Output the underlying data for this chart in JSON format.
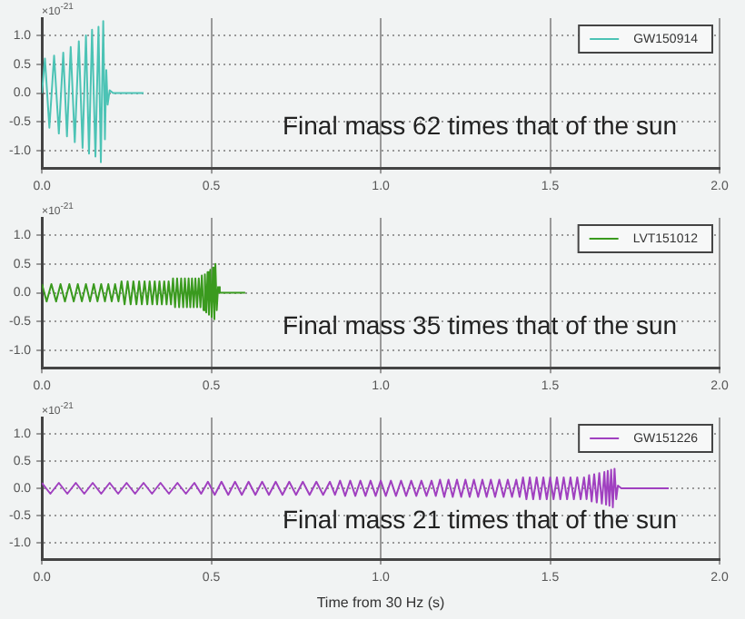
{
  "chart_data": [
    {
      "type": "line",
      "ylabel": "×10$^{-21}$",
      "annotations": [
        "Final mass 62 times that of the sun"
      ],
      "legend": "top right",
      "grid": true,
      "marker": "none",
      "line_style": "solid",
      "xlim": [
        0,
        2
      ],
      "xticks": [
        {
          "value": 0,
          "label": "0.0"
        },
        {
          "value": 0.5,
          "label": "0.5"
        },
        {
          "value": 1,
          "label": "1.0"
        },
        {
          "value": 1.5,
          "label": "1.5"
        },
        {
          "value": 2,
          "label": "2.0"
        }
      ],
      "ylim": [
        -1.3,
        1.3
      ],
      "yticks": [
        {
          "value": -1,
          "label": "-1.0"
        },
        {
          "value": -0.5,
          "label": "-0.5"
        },
        {
          "value": 0,
          "label": "0.0"
        },
        {
          "value": 0.5,
          "label": "0.5"
        },
        {
          "value": 1,
          "label": "1.0"
        }
      ],
      "series": [
        {
          "name": "GW150914",
          "color": "#4cc3b5",
          "x": [
            0,
            0.009,
            0.022,
            0.036,
            0.05,
            0.063,
            0.074,
            0.085,
            0.097,
            0.109,
            0.12,
            0.13,
            0.139,
            0.148,
            0.158,
            0.167,
            0.174,
            0.181,
            0.186,
            0.19,
            0.194,
            0.2,
            0.21,
            0.3
          ],
          "values": [
            0,
            0.6,
            -0.6,
            0.65,
            -0.7,
            0.7,
            -0.75,
            0.8,
            -0.85,
            0.9,
            -0.95,
            1.0,
            -1.05,
            1.1,
            -1.1,
            1.15,
            -1.2,
            1.25,
            -0.8,
            0.4,
            -0.2,
            0.05,
            0,
            0
          ]
        }
      ]
    },
    {
      "type": "line",
      "ylabel": "×10$^{-21}$",
      "annotations": [
        "Final mass 35 times that of the sun"
      ],
      "legend": "top right",
      "grid": true,
      "marker": "none",
      "line_style": "solid",
      "xlim": [
        0,
        2
      ],
      "xticks": [
        {
          "value": 0,
          "label": "0.0"
        },
        {
          "value": 0.5,
          "label": "0.5"
        },
        {
          "value": 1,
          "label": "1.0"
        },
        {
          "value": 1.5,
          "label": "1.5"
        },
        {
          "value": 2,
          "label": "2.0"
        }
      ],
      "ylim": [
        -1.3,
        1.3
      ],
      "yticks": [
        {
          "value": -1,
          "label": "-1.0"
        },
        {
          "value": -0.5,
          "label": "-0.5"
        },
        {
          "value": 0,
          "label": "0.0"
        },
        {
          "value": 0.5,
          "label": "0.5"
        },
        {
          "value": 1,
          "label": "1.0"
        }
      ],
      "series": [
        {
          "name": "LVT151012",
          "color": "#3a9a1e",
          "x": [
            0,
            0.014,
            0.028,
            0.042,
            0.055,
            0.068,
            0.081,
            0.094,
            0.106,
            0.118,
            0.13,
            0.142,
            0.153,
            0.164,
            0.175,
            0.186,
            0.196,
            0.206,
            0.216,
            0.226,
            0.235,
            0.244,
            0.253,
            0.262,
            0.27,
            0.279,
            0.287,
            0.295,
            0.303,
            0.311,
            0.318,
            0.326,
            0.333,
            0.34,
            0.347,
            0.354,
            0.361,
            0.368,
            0.374,
            0.381,
            0.387,
            0.393,
            0.399,
            0.405,
            0.411,
            0.417,
            0.422,
            0.428,
            0.433,
            0.438,
            0.443,
            0.448,
            0.453,
            0.458,
            0.463,
            0.468,
            0.472,
            0.477,
            0.481,
            0.485,
            0.489,
            0.493,
            0.497,
            0.501,
            0.505,
            0.509,
            0.512,
            0.516,
            0.52,
            0.525,
            0.6
          ],
          "values": [
            0.15,
            -0.15,
            0.15,
            -0.15,
            0.15,
            -0.15,
            0.15,
            -0.15,
            0.15,
            -0.15,
            0.15,
            -0.15,
            0.15,
            -0.15,
            0.15,
            -0.15,
            0.15,
            -0.15,
            0.15,
            -0.15,
            0.2,
            -0.2,
            0.2,
            -0.2,
            0.2,
            -0.2,
            0.2,
            -0.2,
            0.2,
            -0.2,
            0.2,
            -0.2,
            0.2,
            -0.2,
            0.2,
            -0.2,
            0.2,
            -0.2,
            0.2,
            -0.2,
            0.25,
            -0.25,
            0.25,
            -0.25,
            0.25,
            -0.25,
            0.25,
            -0.25,
            0.25,
            -0.25,
            0.25,
            -0.25,
            0.25,
            -0.25,
            0.25,
            -0.25,
            0.3,
            -0.3,
            0.32,
            -0.34,
            0.36,
            -0.38,
            0.4,
            -0.42,
            0.44,
            -0.46,
            0.5,
            -0.3,
            0.1,
            0,
            0
          ]
        }
      ]
    },
    {
      "type": "line",
      "ylabel": "×10$^{-21}$",
      "xlabel": "Time from 30 Hz (s)",
      "annotations": [
        "Final mass 21 times that of the sun"
      ],
      "legend": "top right",
      "grid": true,
      "marker": "none",
      "line_style": "solid",
      "xlim": [
        0,
        2
      ],
      "xticks": [
        {
          "value": 0,
          "label": "0.0"
        },
        {
          "value": 0.5,
          "label": "0.5"
        },
        {
          "value": 1,
          "label": "1.0"
        },
        {
          "value": 1.5,
          "label": "1.5"
        },
        {
          "value": 2,
          "label": "2.0"
        }
      ],
      "ylim": [
        -1.3,
        1.3
      ],
      "yticks": [
        {
          "value": -1,
          "label": "-1.0"
        },
        {
          "value": -0.5,
          "label": "-0.5"
        },
        {
          "value": 0,
          "label": "0.0"
        },
        {
          "value": 0.5,
          "label": "0.5"
        },
        {
          "value": 1,
          "label": "1.0"
        }
      ],
      "series": [
        {
          "name": "GW151226",
          "color": "#a040c0",
          "x": [
            0,
            0.025,
            0.05,
            0.075,
            0.1,
            0.125,
            0.15,
            0.175,
            0.2,
            0.225,
            0.25,
            0.275,
            0.3,
            0.325,
            0.35,
            0.375,
            0.4,
            0.425,
            0.45,
            0.47,
            0.49,
            0.51,
            0.53,
            0.55,
            0.57,
            0.59,
            0.61,
            0.63,
            0.65,
            0.67,
            0.69,
            0.71,
            0.73,
            0.75,
            0.77,
            0.79,
            0.81,
            0.83,
            0.85,
            0.865,
            0.88,
            0.895,
            0.91,
            0.925,
            0.94,
            0.955,
            0.97,
            0.985,
            1.0,
            1.015,
            1.03,
            1.045,
            1.06,
            1.075,
            1.09,
            1.105,
            1.12,
            1.135,
            1.15,
            1.1625,
            1.175,
            1.1875,
            1.2,
            1.2125,
            1.225,
            1.2375,
            1.25,
            1.2625,
            1.275,
            1.2875,
            1.3,
            1.3125,
            1.325,
            1.3375,
            1.35,
            1.3625,
            1.375,
            1.3875,
            1.4,
            1.41,
            1.42,
            1.43,
            1.44,
            1.45,
            1.46,
            1.47,
            1.48,
            1.49,
            1.5,
            1.51,
            1.52,
            1.53,
            1.54,
            1.55,
            1.56,
            1.57,
            1.58,
            1.59,
            1.6,
            1.6075,
            1.615,
            1.6225,
            1.63,
            1.6375,
            1.645,
            1.6525,
            1.66,
            1.665,
            1.67,
            1.675,
            1.68,
            1.685,
            1.69,
            1.695,
            1.7,
            1.71,
            1.85
          ],
          "values": [
            0.1,
            -0.1,
            0.1,
            -0.1,
            0.1,
            -0.1,
            0.1,
            -0.1,
            0.1,
            -0.1,
            0.1,
            -0.1,
            0.1,
            -0.1,
            0.1,
            -0.1,
            0.1,
            -0.1,
            0.1,
            -0.1,
            0.12,
            -0.12,
            0.12,
            -0.12,
            0.12,
            -0.12,
            0.12,
            -0.12,
            0.12,
            -0.12,
            0.12,
            -0.12,
            0.12,
            -0.12,
            0.12,
            -0.12,
            0.12,
            -0.12,
            0.12,
            -0.12,
            0.14,
            -0.14,
            0.14,
            -0.14,
            0.14,
            -0.14,
            0.14,
            -0.14,
            0.14,
            -0.14,
            0.14,
            -0.14,
            0.14,
            -0.14,
            0.14,
            -0.14,
            0.14,
            -0.14,
            0.14,
            -0.14,
            0.16,
            -0.16,
            0.16,
            -0.16,
            0.16,
            -0.16,
            0.16,
            -0.16,
            0.16,
            -0.16,
            0.16,
            -0.16,
            0.16,
            -0.16,
            0.16,
            -0.16,
            0.16,
            -0.16,
            0.16,
            -0.16,
            0.2,
            -0.2,
            0.2,
            -0.2,
            0.2,
            -0.2,
            0.2,
            -0.2,
            0.2,
            -0.2,
            0.2,
            -0.2,
            0.2,
            -0.2,
            0.2,
            -0.2,
            0.2,
            -0.2,
            0.2,
            -0.2,
            0.24,
            -0.24,
            0.26,
            -0.26,
            0.28,
            -0.28,
            0.3,
            -0.3,
            0.32,
            -0.32,
            0.34,
            -0.35,
            0.36,
            -0.2,
            0.05,
            0,
            0
          ]
        }
      ]
    }
  ]
}
